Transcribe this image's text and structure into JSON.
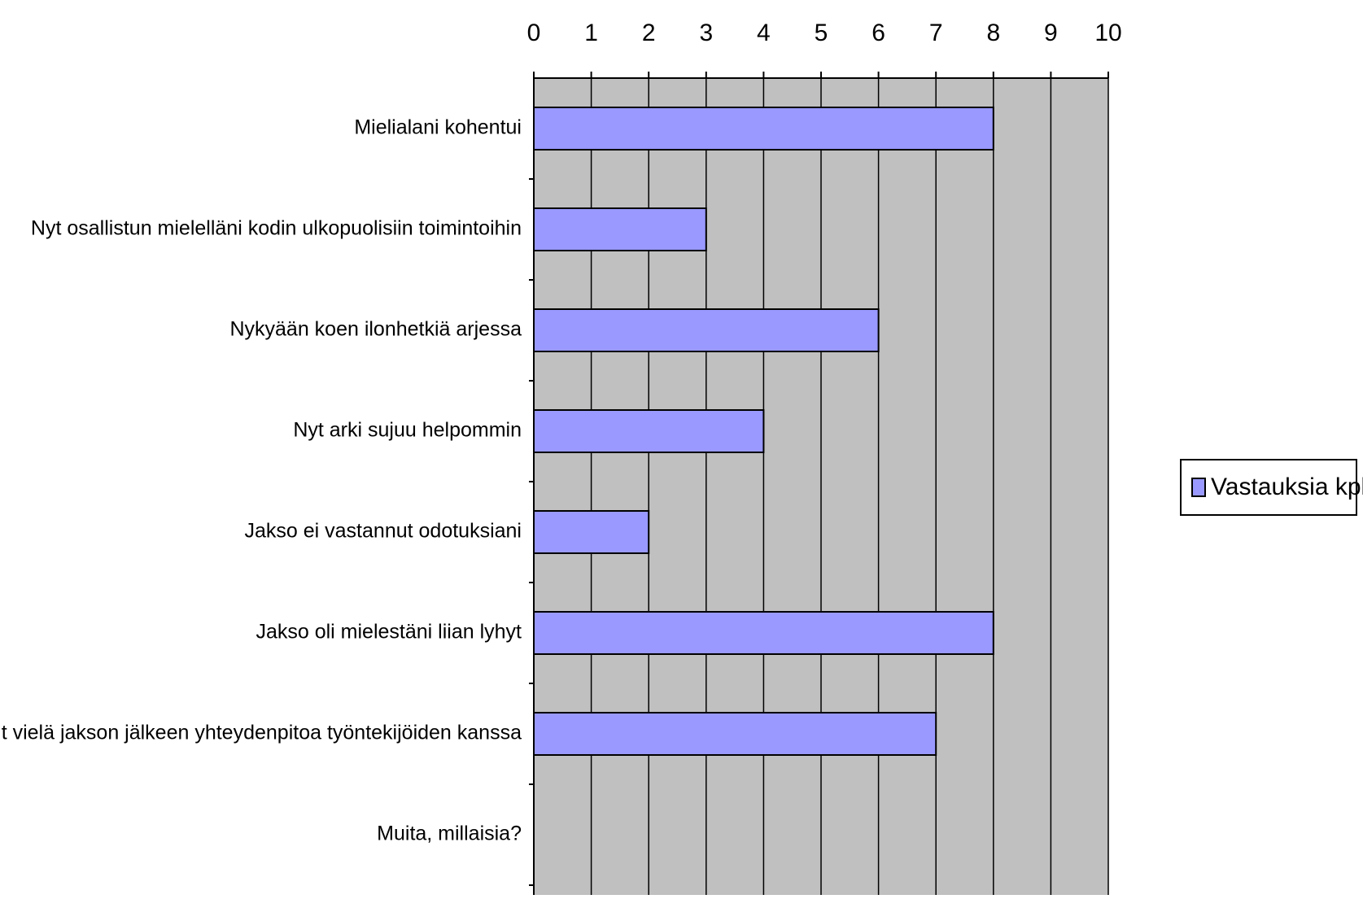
{
  "chart_data": {
    "type": "bar",
    "orientation": "horizontal",
    "categories": [
      "Mielialani kohentui",
      "Nyt osallistun mielelläni kodin ulkopuolisiin toimintoihin",
      "Nykyään koen ilonhetkiä arjessa",
      "Nyt arki sujuu helpommin",
      "Jakso ei vastannut odotuksiani",
      "Jakso oli mielestäni liian lyhyt",
      "Olisin toivonut vielä jakson jälkeen yhteydenpitoa työntekijöiden kanssa",
      "Muita, millaisia?"
    ],
    "series": [
      {
        "name": "Vastauksia kpl",
        "values": [
          8,
          3,
          6,
          4,
          2,
          8,
          7,
          0
        ]
      }
    ],
    "x_ticks": [
      "0",
      "1",
      "2",
      "3",
      "4",
      "5",
      "6",
      "7",
      "8",
      "9",
      "10"
    ],
    "xlim": [
      0,
      10
    ],
    "x_axis_position": "top",
    "grid": "vertical",
    "legend": "right",
    "colors": {
      "bar_fill": "#9999ff",
      "plot_background": "#c0c0c0",
      "bar_stroke": "#000000",
      "gridline": "#000000"
    }
  }
}
